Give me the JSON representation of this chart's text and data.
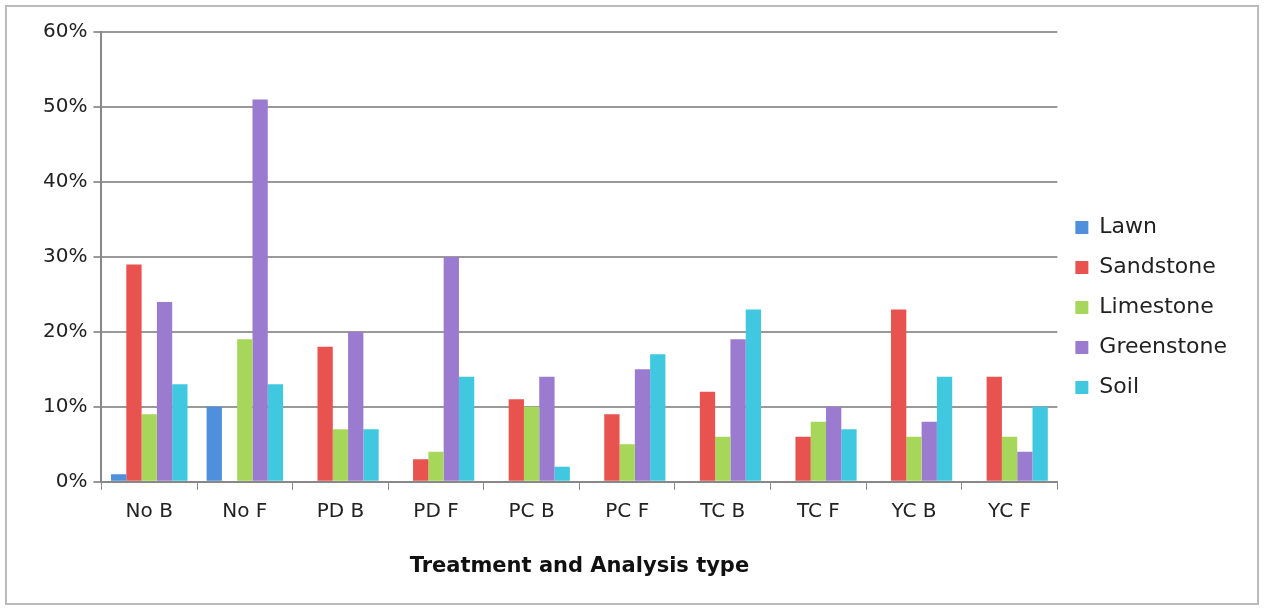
{
  "chart_data": {
    "type": "bar",
    "xlabel": "Treatment and Analysis type",
    "categories": [
      "No B",
      "No F",
      "PD B",
      "PD F",
      "PC B",
      "PC F",
      "TC B",
      "TC F",
      "YC B",
      "YC F"
    ],
    "series": [
      {
        "name": "Lawn",
        "color": "#4f8fdc",
        "values": [
          1,
          10,
          0,
          0,
          0,
          0,
          0,
          0,
          0,
          0
        ]
      },
      {
        "name": "Sandstone",
        "color": "#e8534f",
        "values": [
          29,
          0,
          18,
          3,
          11,
          9,
          12,
          6,
          23,
          14
        ]
      },
      {
        "name": "Limestone",
        "color": "#a6d65a",
        "values": [
          9,
          19,
          7,
          4,
          10,
          5,
          6,
          8,
          6,
          6
        ]
      },
      {
        "name": "Greenstone",
        "color": "#9b7bd0",
        "values": [
          24,
          51,
          20,
          30,
          14,
          15,
          19,
          10,
          8,
          4
        ]
      },
      {
        "name": "Soil",
        "color": "#3fc8e0",
        "values": [
          13,
          13,
          7,
          14,
          2,
          17,
          23,
          7,
          14,
          10
        ]
      }
    ],
    "ylim": [
      0,
      60
    ],
    "yticks": [
      {
        "value": 0,
        "label": "0%"
      },
      {
        "value": 10,
        "label": "10%"
      },
      {
        "value": 20,
        "label": "20%"
      },
      {
        "value": 30,
        "label": "30%"
      },
      {
        "value": 40,
        "label": "40%"
      },
      {
        "value": 50,
        "label": "50%"
      },
      {
        "value": 60,
        "label": "60%"
      }
    ],
    "grid": "y",
    "legend": "right"
  }
}
